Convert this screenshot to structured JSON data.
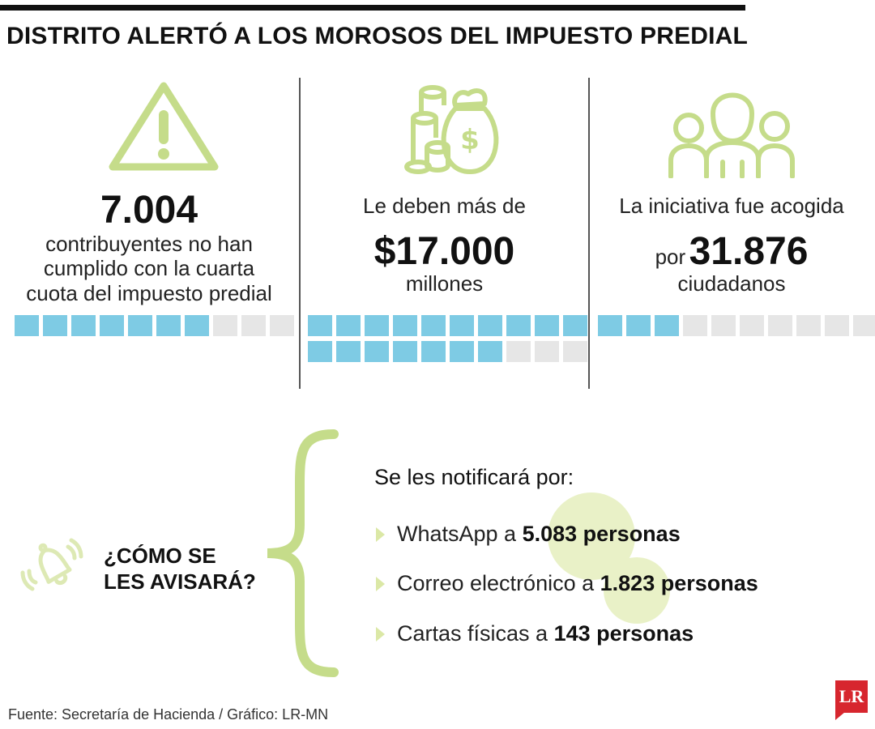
{
  "header": {
    "title": "DISTRITO ALERTÓ A LOS MOROSOS DEL IMPUESTO PREDIAL"
  },
  "stats": [
    {
      "icon": "warning-triangle-icon",
      "number": "7.004",
      "lines": [
        "contribuyentes no han",
        "cumplido con la cuarta",
        "cuota del impuesto predial"
      ],
      "squares_total": 10,
      "squares_filled": 7
    },
    {
      "icon": "money-bag-coins-icon",
      "prefix": "Le deben más de",
      "number": "$17.000",
      "suffix": "millones",
      "squares_total": 20,
      "squares_filled": 17
    },
    {
      "icon": "people-group-icon",
      "prefix": "La iniciativa fue acogida",
      "number_prefix": "por",
      "number": "31.876",
      "suffix": "ciudadanos",
      "squares_total": 10,
      "squares_filled": 3
    }
  ],
  "howto": {
    "icon": "ringing-bell-icon",
    "line1": "¿CÓMO SE",
    "line2": "LES AVISARÁ?"
  },
  "notifications": {
    "heading": "Se les notificará por:",
    "items": [
      {
        "text": "WhatsApp a ",
        "bold": "5.083 personas"
      },
      {
        "text": "Correo electrónico a ",
        "bold": "1.823 personas"
      },
      {
        "text": "Cartas físicas a ",
        "bold": "143 personas"
      }
    ]
  },
  "footer": {
    "source": "Fuente: Secretaría de Hacienda / Gráfico: LR-MN",
    "logo": "LR"
  },
  "colors": {
    "accent_green": "#c5dc8a",
    "square_on": "#7ecbe4",
    "square_off": "#e6e6e6",
    "logo_red": "#d7262e"
  }
}
